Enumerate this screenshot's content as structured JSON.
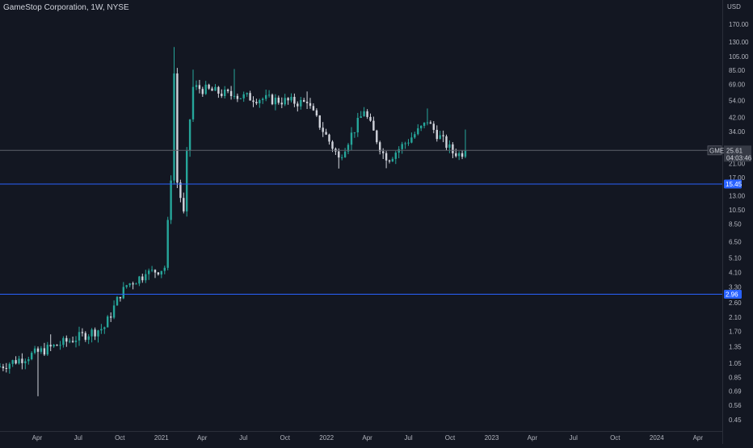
{
  "header": {
    "title": "GameStop Corporation, 1W, NYSE"
  },
  "colors": {
    "background": "#131722",
    "up_candle": "#26a69a",
    "down_candle": "#d1d4dc",
    "line_blue": "#2962ff",
    "current_line": "#5d606b",
    "axis_text": "#b2b5be"
  },
  "chart_data": {
    "type": "candlestick",
    "title": "GameStop Corporation, 1W, NYSE",
    "x_axis": {
      "ticks": [
        "Apr",
        "Jul",
        "Oct",
        "2021",
        "Apr",
        "Jul",
        "Oct",
        "2022",
        "Apr",
        "Jul",
        "Oct",
        "2023",
        "Apr",
        "Jul",
        "Oct",
        "2024",
        "Apr"
      ],
      "tick_dates": [
        "2020-04-01",
        "2020-07-01",
        "2020-10-01",
        "2021-01-01",
        "2021-04-01",
        "2021-07-01",
        "2021-10-01",
        "2022-01-01",
        "2022-04-01",
        "2022-07-01",
        "2022-10-01",
        "2023-01-01",
        "2023-04-01",
        "2023-07-01",
        "2023-10-01",
        "2024-01-01",
        "2024-04-01"
      ],
      "range": [
        "2020-01-10",
        "2024-05-25"
      ]
    },
    "y_axis": {
      "unit": "USD",
      "scale": "log",
      "ticks": [
        "170.00",
        "130.00",
        "105.00",
        "85.00",
        "69.00",
        "54.00",
        "42.00",
        "34.00",
        "21.00",
        "17.00",
        "13.00",
        "10.50",
        "8.50",
        "6.50",
        "5.10",
        "4.10",
        "3.30",
        "2.60",
        "2.10",
        "1.70",
        "1.35",
        "1.05",
        "0.85",
        "0.69",
        "0.56",
        "0.45"
      ],
      "range": [
        0.41,
        230
      ]
    },
    "horizontal_lines": [
      {
        "value": 15.45,
        "label": "15.45",
        "color": "#2962ff"
      },
      {
        "value": 2.96,
        "label": "2.96",
        "color": "#2962ff"
      }
    ],
    "current_price": {
      "symbol": "GME",
      "value": 25.61,
      "label": "25.61",
      "countdown": "04:03:46"
    },
    "key_points": [
      {
        "date": "2020-01-10",
        "close": 1.0
      },
      {
        "date": "2020-04-03",
        "low": 0.64,
        "note": "lowest wick"
      },
      {
        "date": "2020-05-01",
        "high": 1.62
      },
      {
        "date": "2020-08-28",
        "close": 1.8
      },
      {
        "date": "2020-10-09",
        "close": 3.3
      },
      {
        "date": "2020-11-27",
        "close": 4.0
      },
      {
        "date": "2021-01-08",
        "close": 4.4
      },
      {
        "date": "2021-01-22",
        "close": 16.3
      },
      {
        "date": "2021-01-29",
        "high": 120.75,
        "close": 81.25
      },
      {
        "date": "2021-02-05",
        "close": 15.8
      },
      {
        "date": "2021-02-19",
        "low": 9.95,
        "close": 10.25
      },
      {
        "date": "2021-02-26",
        "close": 25.5
      },
      {
        "date": "2021-03-12",
        "high": 86.0,
        "close": 66.3
      },
      {
        "date": "2021-06-11",
        "high": 86.8,
        "close": 58.0
      },
      {
        "date": "2021-11-19",
        "high": 62.0,
        "close": 52.0
      },
      {
        "date": "2022-01-28",
        "low": 19.5,
        "close": 23.0
      },
      {
        "date": "2022-03-25",
        "high": 49.0,
        "close": 46.0
      },
      {
        "date": "2022-05-13",
        "low": 19.6,
        "close": 22.0
      },
      {
        "date": "2022-08-12",
        "high": 48.0,
        "close": 39.0
      },
      {
        "date": "2022-10-14",
        "low": 23.0,
        "close": 23.5
      },
      {
        "date": "2022-11-04",
        "high": 35.0,
        "close": 25.61
      }
    ]
  }
}
